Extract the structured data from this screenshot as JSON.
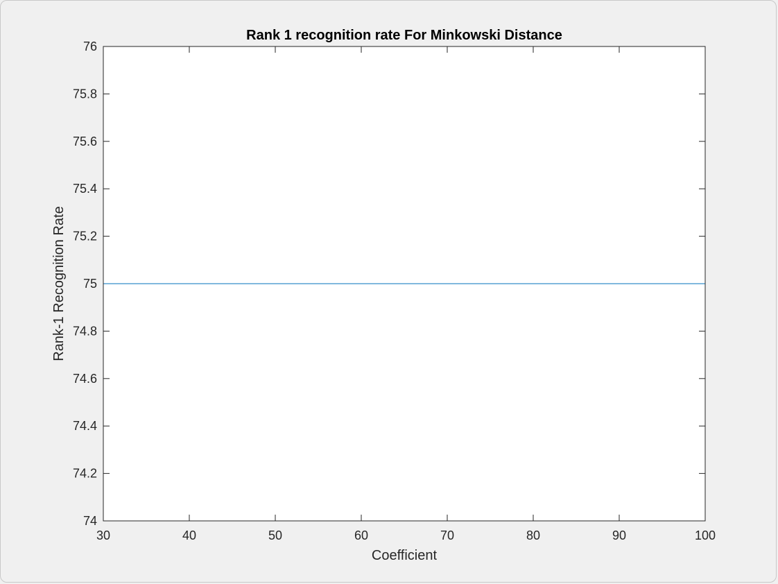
{
  "chart_data": {
    "type": "line",
    "title": "Rank 1 recognition rate For Minkowski Distance",
    "xlabel": "Coefficient",
    "ylabel": "Rank-1 Recognition Rate",
    "xlim": [
      30,
      100
    ],
    "ylim": [
      74,
      76
    ],
    "x_ticks": [
      "30",
      "40",
      "50",
      "60",
      "70",
      "80",
      "90",
      "100"
    ],
    "y_ticks": [
      "74",
      "74.2",
      "74.4",
      "74.6",
      "74.8",
      "75",
      "75.2",
      "75.4",
      "75.6",
      "75.8",
      "76"
    ],
    "grid": false,
    "box": true,
    "series": [
      {
        "x": [
          30,
          40,
          50,
          60,
          70,
          80,
          90,
          100
        ],
        "values": [
          75,
          75,
          75,
          75,
          75,
          75,
          75,
          75
        ],
        "color": "#0072BD"
      }
    ]
  }
}
